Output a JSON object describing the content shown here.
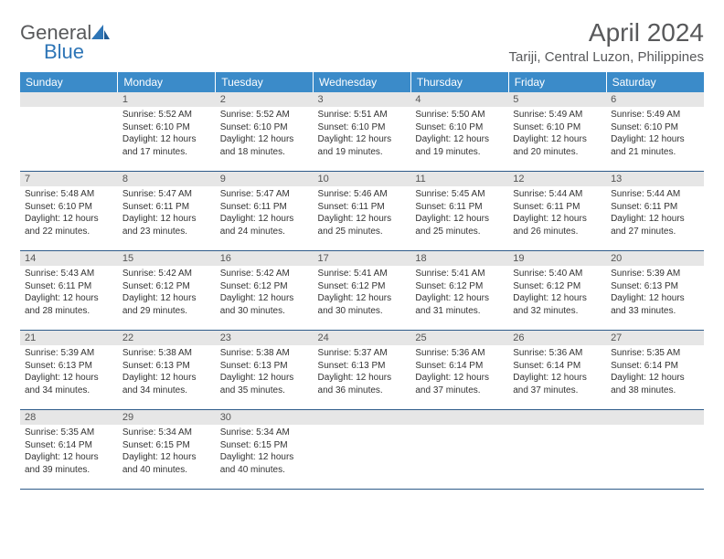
{
  "brand": {
    "word1": "General",
    "word2": "Blue"
  },
  "title": "April 2024",
  "location": "Tariji, Central Luzon, Philippines",
  "colors": {
    "header_bg": "#3b8bc9",
    "header_text": "#ffffff",
    "daynum_bg": "#e6e6e6",
    "row_border": "#2e5b8a",
    "text": "#333333",
    "title_text": "#58595b",
    "brand_gray": "#58595b",
    "brand_blue": "#2e75b6"
  },
  "weekdays": [
    "Sunday",
    "Monday",
    "Tuesday",
    "Wednesday",
    "Thursday",
    "Friday",
    "Saturday"
  ],
  "weeks": [
    [
      {
        "n": "",
        "sr": "",
        "ss": "",
        "dl": ""
      },
      {
        "n": "1",
        "sr": "Sunrise: 5:52 AM",
        "ss": "Sunset: 6:10 PM",
        "dl": "Daylight: 12 hours and 17 minutes."
      },
      {
        "n": "2",
        "sr": "Sunrise: 5:52 AM",
        "ss": "Sunset: 6:10 PM",
        "dl": "Daylight: 12 hours and 18 minutes."
      },
      {
        "n": "3",
        "sr": "Sunrise: 5:51 AM",
        "ss": "Sunset: 6:10 PM",
        "dl": "Daylight: 12 hours and 19 minutes."
      },
      {
        "n": "4",
        "sr": "Sunrise: 5:50 AM",
        "ss": "Sunset: 6:10 PM",
        "dl": "Daylight: 12 hours and 19 minutes."
      },
      {
        "n": "5",
        "sr": "Sunrise: 5:49 AM",
        "ss": "Sunset: 6:10 PM",
        "dl": "Daylight: 12 hours and 20 minutes."
      },
      {
        "n": "6",
        "sr": "Sunrise: 5:49 AM",
        "ss": "Sunset: 6:10 PM",
        "dl": "Daylight: 12 hours and 21 minutes."
      }
    ],
    [
      {
        "n": "7",
        "sr": "Sunrise: 5:48 AM",
        "ss": "Sunset: 6:10 PM",
        "dl": "Daylight: 12 hours and 22 minutes."
      },
      {
        "n": "8",
        "sr": "Sunrise: 5:47 AM",
        "ss": "Sunset: 6:11 PM",
        "dl": "Daylight: 12 hours and 23 minutes."
      },
      {
        "n": "9",
        "sr": "Sunrise: 5:47 AM",
        "ss": "Sunset: 6:11 PM",
        "dl": "Daylight: 12 hours and 24 minutes."
      },
      {
        "n": "10",
        "sr": "Sunrise: 5:46 AM",
        "ss": "Sunset: 6:11 PM",
        "dl": "Daylight: 12 hours and 25 minutes."
      },
      {
        "n": "11",
        "sr": "Sunrise: 5:45 AM",
        "ss": "Sunset: 6:11 PM",
        "dl": "Daylight: 12 hours and 25 minutes."
      },
      {
        "n": "12",
        "sr": "Sunrise: 5:44 AM",
        "ss": "Sunset: 6:11 PM",
        "dl": "Daylight: 12 hours and 26 minutes."
      },
      {
        "n": "13",
        "sr": "Sunrise: 5:44 AM",
        "ss": "Sunset: 6:11 PM",
        "dl": "Daylight: 12 hours and 27 minutes."
      }
    ],
    [
      {
        "n": "14",
        "sr": "Sunrise: 5:43 AM",
        "ss": "Sunset: 6:11 PM",
        "dl": "Daylight: 12 hours and 28 minutes."
      },
      {
        "n": "15",
        "sr": "Sunrise: 5:42 AM",
        "ss": "Sunset: 6:12 PM",
        "dl": "Daylight: 12 hours and 29 minutes."
      },
      {
        "n": "16",
        "sr": "Sunrise: 5:42 AM",
        "ss": "Sunset: 6:12 PM",
        "dl": "Daylight: 12 hours and 30 minutes."
      },
      {
        "n": "17",
        "sr": "Sunrise: 5:41 AM",
        "ss": "Sunset: 6:12 PM",
        "dl": "Daylight: 12 hours and 30 minutes."
      },
      {
        "n": "18",
        "sr": "Sunrise: 5:41 AM",
        "ss": "Sunset: 6:12 PM",
        "dl": "Daylight: 12 hours and 31 minutes."
      },
      {
        "n": "19",
        "sr": "Sunrise: 5:40 AM",
        "ss": "Sunset: 6:12 PM",
        "dl": "Daylight: 12 hours and 32 minutes."
      },
      {
        "n": "20",
        "sr": "Sunrise: 5:39 AM",
        "ss": "Sunset: 6:13 PM",
        "dl": "Daylight: 12 hours and 33 minutes."
      }
    ],
    [
      {
        "n": "21",
        "sr": "Sunrise: 5:39 AM",
        "ss": "Sunset: 6:13 PM",
        "dl": "Daylight: 12 hours and 34 minutes."
      },
      {
        "n": "22",
        "sr": "Sunrise: 5:38 AM",
        "ss": "Sunset: 6:13 PM",
        "dl": "Daylight: 12 hours and 34 minutes."
      },
      {
        "n": "23",
        "sr": "Sunrise: 5:38 AM",
        "ss": "Sunset: 6:13 PM",
        "dl": "Daylight: 12 hours and 35 minutes."
      },
      {
        "n": "24",
        "sr": "Sunrise: 5:37 AM",
        "ss": "Sunset: 6:13 PM",
        "dl": "Daylight: 12 hours and 36 minutes."
      },
      {
        "n": "25",
        "sr": "Sunrise: 5:36 AM",
        "ss": "Sunset: 6:14 PM",
        "dl": "Daylight: 12 hours and 37 minutes."
      },
      {
        "n": "26",
        "sr": "Sunrise: 5:36 AM",
        "ss": "Sunset: 6:14 PM",
        "dl": "Daylight: 12 hours and 37 minutes."
      },
      {
        "n": "27",
        "sr": "Sunrise: 5:35 AM",
        "ss": "Sunset: 6:14 PM",
        "dl": "Daylight: 12 hours and 38 minutes."
      }
    ],
    [
      {
        "n": "28",
        "sr": "Sunrise: 5:35 AM",
        "ss": "Sunset: 6:14 PM",
        "dl": "Daylight: 12 hours and 39 minutes."
      },
      {
        "n": "29",
        "sr": "Sunrise: 5:34 AM",
        "ss": "Sunset: 6:15 PM",
        "dl": "Daylight: 12 hours and 40 minutes."
      },
      {
        "n": "30",
        "sr": "Sunrise: 5:34 AM",
        "ss": "Sunset: 6:15 PM",
        "dl": "Daylight: 12 hours and 40 minutes."
      },
      {
        "n": "",
        "sr": "",
        "ss": "",
        "dl": ""
      },
      {
        "n": "",
        "sr": "",
        "ss": "",
        "dl": ""
      },
      {
        "n": "",
        "sr": "",
        "ss": "",
        "dl": ""
      },
      {
        "n": "",
        "sr": "",
        "ss": "",
        "dl": ""
      }
    ]
  ]
}
